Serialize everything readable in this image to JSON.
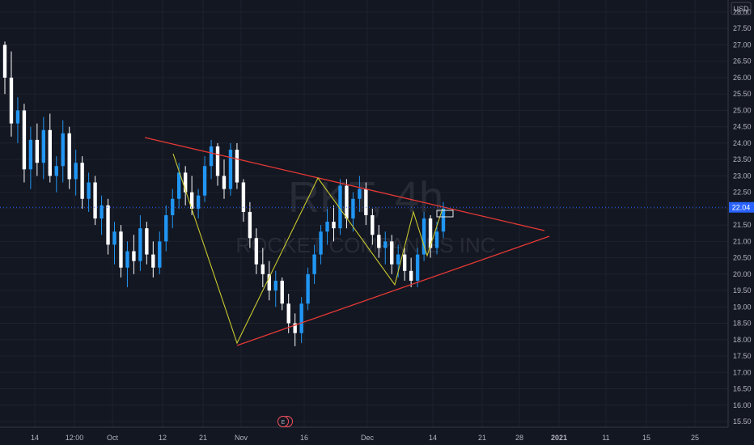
{
  "chart_data": {
    "type": "candlestick",
    "symbol_watermark": "RKT, 4h",
    "company_watermark": "ROCKET COMPANIES INC",
    "currency": "USD",
    "current_price": "22.04",
    "ylim": [
      15.3,
      28.2
    ],
    "y_ticks": [
      "15.50",
      "16.00",
      "16.50",
      "17.00",
      "17.50",
      "18.00",
      "18.50",
      "19.00",
      "19.50",
      "20.00",
      "20.50",
      "21.00",
      "21.50",
      "22.00",
      "22.50",
      "23.00",
      "23.50",
      "24.00",
      "24.50",
      "25.00",
      "25.50",
      "26.00",
      "26.50",
      "27.00",
      "27.50",
      "28.00"
    ],
    "x_ticks": [
      "14",
      "12:00",
      "Oct",
      "12",
      "21",
      "Nov",
      "16",
      "Dec",
      "14",
      "21",
      "28",
      "2021",
      "11",
      "15",
      "25"
    ],
    "earnings_marker": "E",
    "candles": [
      [
        27.0,
        27.1,
        25.5,
        26.0
      ],
      [
        26.0,
        26.8,
        24.2,
        24.6
      ],
      [
        24.6,
        25.4,
        24.0,
        25.0
      ],
      [
        25.0,
        25.2,
        22.8,
        23.2
      ],
      [
        23.2,
        24.5,
        22.6,
        24.1
      ],
      [
        24.1,
        24.6,
        23.0,
        23.4
      ],
      [
        23.4,
        24.8,
        22.9,
        24.4
      ],
      [
        24.4,
        24.9,
        22.8,
        23.0
      ],
      [
        23.0,
        23.6,
        22.5,
        23.3
      ],
      [
        23.3,
        24.7,
        22.8,
        24.3
      ],
      [
        24.3,
        24.5,
        22.6,
        22.9
      ],
      [
        22.9,
        23.8,
        22.4,
        23.4
      ],
      [
        23.4,
        23.6,
        22.0,
        22.3
      ],
      [
        22.3,
        23.1,
        21.9,
        22.8
      ],
      [
        22.8,
        23.0,
        21.5,
        21.7
      ],
      [
        21.7,
        22.4,
        21.2,
        22.1
      ],
      [
        22.1,
        22.3,
        20.6,
        20.9
      ],
      [
        20.9,
        21.6,
        20.3,
        21.3
      ],
      [
        21.3,
        21.5,
        19.9,
        20.2
      ],
      [
        20.2,
        21.0,
        19.6,
        20.7
      ],
      [
        20.7,
        21.2,
        20.0,
        20.4
      ],
      [
        20.4,
        21.8,
        20.1,
        21.4
      ],
      [
        21.4,
        21.6,
        20.3,
        20.6
      ],
      [
        20.6,
        21.0,
        19.9,
        20.2
      ],
      [
        20.2,
        21.3,
        20.0,
        21.0
      ],
      [
        21.0,
        22.1,
        20.7,
        21.8
      ],
      [
        21.8,
        22.6,
        21.4,
        22.3
      ],
      [
        22.3,
        23.4,
        22.0,
        23.1
      ],
      [
        23.1,
        23.3,
        22.1,
        22.5
      ],
      [
        22.5,
        23.0,
        21.8,
        22.0
      ],
      [
        22.0,
        22.6,
        21.7,
        22.4
      ],
      [
        22.4,
        23.6,
        22.2,
        23.3
      ],
      [
        23.3,
        24.1,
        22.9,
        23.9
      ],
      [
        23.9,
        24.0,
        22.7,
        23.0
      ],
      [
        23.0,
        23.5,
        22.3,
        22.6
      ],
      [
        22.6,
        24.0,
        22.4,
        23.8
      ],
      [
        23.8,
        24.0,
        22.6,
        22.8
      ],
      [
        22.8,
        22.9,
        21.6,
        21.9
      ],
      [
        21.9,
        22.2,
        20.8,
        21.1
      ],
      [
        21.1,
        21.4,
        20.0,
        20.3
      ],
      [
        20.3,
        20.8,
        19.6,
        20.0
      ],
      [
        20.0,
        20.4,
        19.2,
        19.5
      ],
      [
        19.5,
        20.1,
        19.0,
        19.8
      ],
      [
        19.8,
        19.9,
        18.9,
        19.1
      ],
      [
        19.1,
        19.4,
        18.2,
        18.5
      ],
      [
        18.5,
        18.8,
        17.8,
        18.2
      ],
      [
        18.2,
        19.3,
        17.9,
        19.1
      ],
      [
        19.1,
        20.2,
        18.9,
        20.0
      ],
      [
        20.0,
        20.9,
        19.7,
        20.6
      ],
      [
        20.6,
        21.5,
        20.3,
        21.3
      ],
      [
        21.3,
        22.0,
        20.9,
        21.6
      ],
      [
        21.6,
        22.1,
        21.0,
        21.4
      ],
      [
        21.4,
        22.9,
        21.2,
        22.7
      ],
      [
        22.7,
        22.9,
        21.4,
        21.7
      ],
      [
        21.7,
        22.5,
        21.3,
        22.3
      ],
      [
        22.3,
        23.0,
        21.9,
        22.6
      ],
      [
        22.6,
        22.8,
        21.5,
        21.8
      ],
      [
        21.8,
        22.0,
        20.9,
        21.2
      ],
      [
        21.2,
        21.5,
        20.5,
        20.8
      ],
      [
        20.8,
        21.3,
        20.3,
        21.0
      ],
      [
        21.0,
        21.2,
        20.0,
        20.3
      ],
      [
        20.3,
        20.9,
        19.9,
        20.6
      ],
      [
        20.6,
        20.8,
        19.8,
        20.1
      ],
      [
        20.1,
        20.5,
        19.6,
        19.8
      ],
      [
        19.8,
        20.8,
        19.6,
        20.6
      ],
      [
        20.6,
        21.9,
        20.4,
        21.7
      ],
      [
        21.7,
        21.8,
        20.5,
        20.8
      ],
      [
        20.8,
        21.6,
        20.6,
        21.3
      ],
      [
        21.3,
        22.2,
        21.1,
        22.0
      ]
    ]
  }
}
